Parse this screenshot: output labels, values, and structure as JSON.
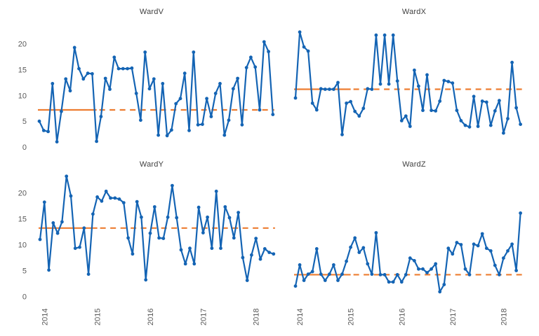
{
  "figure": {
    "background": "#ffffff",
    "panel_titles": [
      "WardV",
      "WardX",
      "WardY",
      "WardZ"
    ]
  },
  "colors": {
    "line": "#1464b4",
    "marker": "#1464b4",
    "reference": "#ed7d31",
    "axis_text": "#595959",
    "title_text": "#404040"
  },
  "months": [
    "2013-12",
    "2014-01",
    "2014-02",
    "2014-03",
    "2014-04",
    "2014-05",
    "2014-06",
    "2014-07",
    "2014-08",
    "2014-09",
    "2014-10",
    "2014-11",
    "2014-12",
    "2015-01",
    "2015-02",
    "2015-03",
    "2015-04",
    "2015-05",
    "2015-06",
    "2015-07",
    "2015-08",
    "2015-09",
    "2015-10",
    "2015-11",
    "2015-12",
    "2016-01",
    "2016-02",
    "2016-03",
    "2016-04",
    "2016-05",
    "2016-06",
    "2016-07",
    "2016-08",
    "2016-09",
    "2016-10",
    "2016-11",
    "2016-12",
    "2017-01",
    "2017-02",
    "2017-03",
    "2017-04",
    "2017-05",
    "2017-06",
    "2017-07",
    "2017-08",
    "2017-09",
    "2017-10",
    "2017-11",
    "2017-12",
    "2018-01",
    "2018-02",
    "2018-03",
    "2018-04",
    "2018-05"
  ],
  "chart_data": [
    {
      "type": "line",
      "title": "WardV",
      "position": "top-left",
      "values": [
        5,
        3.2,
        3,
        12.3,
        1,
        6.9,
        13.2,
        10.9,
        19.3,
        15.2,
        13.2,
        14.3,
        14.2,
        1.1,
        5.9,
        13.3,
        11.2,
        17.4,
        15.2,
        15.2,
        15.2,
        15.3,
        10.4,
        5.2,
        18.4,
        11.3,
        13.2,
        2.3,
        12.3,
        2.2,
        3.3,
        8.4,
        9.4,
        14.3,
        3.2,
        18.4,
        4.3,
        4.4,
        9.4,
        5.9,
        10.4,
        12.3,
        2.3,
        5.2,
        11.3,
        13.3,
        4.3,
        15.4,
        17.4,
        15.5,
        7.2,
        20.4,
        18.5,
        6.3
      ],
      "ref_level": 7.2,
      "baseline_end_index": 13,
      "ylim": [
        0,
        23
      ],
      "y_ticks": [
        0,
        5,
        10,
        15,
        20
      ],
      "x_ticks": [
        "2014",
        "2015",
        "2016",
        "2017",
        "2018"
      ],
      "x_tick_month_indices": [
        1,
        13,
        25,
        37,
        49
      ],
      "show_y_labels": true,
      "show_x_labels": false,
      "grid": false,
      "legend": "none"
    },
    {
      "type": "line",
      "title": "WardX",
      "position": "top-right",
      "values": [
        9.5,
        22.3,
        19.4,
        18.6,
        8.5,
        7.2,
        11.3,
        11.2,
        11.2,
        11.2,
        12.5,
        2.4,
        8.5,
        8.8,
        6.9,
        6,
        7.5,
        11.3,
        11.2,
        21.7,
        12.2,
        21.7,
        12.2,
        21.7,
        12.8,
        5.1,
        6,
        4,
        14.9,
        11.8,
        7.1,
        14,
        7.1,
        7,
        8.9,
        12.9,
        12.7,
        12.4,
        7.1,
        5.1,
        4.2,
        3.9,
        9.8,
        4,
        8.9,
        8.7,
        4.2,
        7,
        9,
        2.7,
        5.5,
        16.4,
        7.6,
        4.4
      ],
      "ref_level": 11.2,
      "baseline_end_index": 13,
      "ylim": [
        0,
        23
      ],
      "y_ticks": [
        0,
        5,
        10,
        15,
        20
      ],
      "x_ticks": [
        "2014",
        "2015",
        "2016",
        "2017",
        "2018"
      ],
      "x_tick_month_indices": [
        1,
        13,
        25,
        37,
        49
      ],
      "show_y_labels": false,
      "show_x_labels": false,
      "grid": false,
      "legend": "none"
    },
    {
      "type": "line",
      "title": "WardY",
      "position": "bottom-left",
      "values": [
        11,
        18.2,
        5.1,
        14.2,
        12.2,
        14.4,
        23.2,
        19.4,
        9.3,
        9.5,
        13.2,
        4.3,
        15.9,
        19.2,
        18.4,
        20.3,
        19,
        19,
        18.8,
        18.1,
        11.3,
        8.2,
        18.3,
        15.3,
        3.2,
        12.2,
        17.3,
        11.3,
        11.2,
        15.3,
        21.4,
        15.2,
        9,
        6.3,
        9.3,
        6.3,
        17.2,
        12.3,
        15.3,
        9.3,
        20.3,
        9.3,
        17.3,
        15.2,
        11.3,
        16.2,
        7.5,
        3.1,
        8,
        11.2,
        7.2,
        9.2,
        8.5,
        8.2
      ],
      "ref_level": 13.2,
      "baseline_end_index": 13,
      "ylim": [
        0,
        24
      ],
      "y_ticks": [
        0,
        5,
        10,
        15,
        20
      ],
      "x_ticks": [
        "2014",
        "2015",
        "2016",
        "2017",
        "2018"
      ],
      "x_tick_month_indices": [
        1,
        13,
        25,
        37,
        49
      ],
      "show_y_labels": true,
      "show_x_labels": true,
      "grid": false,
      "legend": "none"
    },
    {
      "type": "line",
      "title": "WardZ",
      "position": "bottom-right",
      "values": [
        2,
        6.1,
        3.1,
        4.3,
        4.8,
        9.2,
        4.3,
        3.1,
        4.3,
        6.1,
        3.1,
        4.3,
        6.8,
        9.5,
        11.3,
        8.5,
        9.4,
        6.3,
        4.3,
        12.3,
        4.2,
        4.2,
        2.8,
        2.8,
        4.2,
        2.8,
        4.2,
        7.4,
        6.9,
        5.3,
        5.3,
        4.6,
        5.3,
        6.3,
        0.9,
        2.3,
        9.3,
        8.2,
        10.4,
        10,
        5.3,
        4.2,
        10.1,
        9.8,
        12.1,
        9.3,
        8.8,
        6,
        4.2,
        7.4,
        8.8,
        10.1,
        5,
        16.1
      ],
      "ref_level": 4.2,
      "baseline_end_index": 13,
      "ylim": [
        0,
        24
      ],
      "y_ticks": [
        0,
        5,
        10,
        15,
        20
      ],
      "x_ticks": [
        "2014",
        "2015",
        "2016",
        "2017",
        "2018"
      ],
      "x_tick_month_indices": [
        1,
        13,
        25,
        37,
        49
      ],
      "show_y_labels": false,
      "show_x_labels": true,
      "grid": false,
      "legend": "none"
    }
  ]
}
